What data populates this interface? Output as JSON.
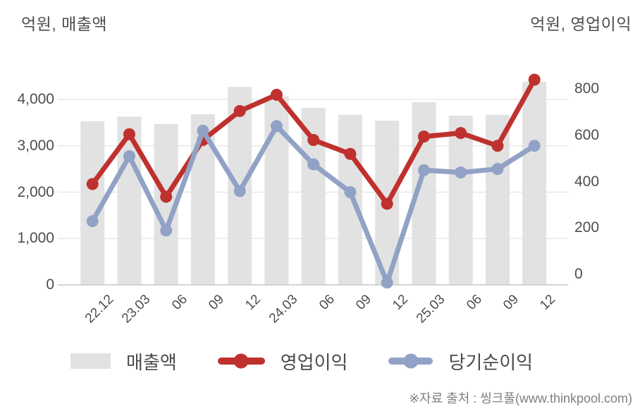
{
  "header": {
    "left_axis_title": "억원, 매출액",
    "right_axis_title": "억원, 영업이익"
  },
  "chart_data": {
    "type": "bar+line",
    "categories": [
      "22.12",
      "23.03",
      "06",
      "09",
      "12",
      "24.03",
      "06",
      "09",
      "12",
      "25.03",
      "06",
      "09",
      "12"
    ],
    "series": [
      {
        "name": "매출액",
        "type": "bar",
        "yaxis": "left",
        "color": "#e2e2e2",
        "values": [
          3530,
          3630,
          3470,
          3680,
          4270,
          4070,
          3820,
          3670,
          3540,
          3940,
          3650,
          3670,
          4380
        ]
      },
      {
        "name": "영업이익",
        "type": "line",
        "yaxis": "right",
        "color": "#bf312e",
        "values": [
          435,
          650,
          380,
          625,
          750,
          820,
          625,
          565,
          350,
          640,
          655,
          600,
          885
        ]
      },
      {
        "name": "당기순이익",
        "type": "line",
        "yaxis": "right",
        "color": "#92a2c6",
        "values": [
          275,
          555,
          235,
          665,
          405,
          685,
          520,
          400,
          10,
          495,
          485,
          500,
          600
        ]
      }
    ],
    "left_axis": {
      "label": "억원, 매출액",
      "unit": "억원",
      "ticks": [
        "4,000",
        "3,000",
        "2,000",
        "1,000",
        "0"
      ],
      "tick_values": [
        4000,
        3000,
        2000,
        1000,
        0
      ],
      "range": [
        0,
        4400
      ]
    },
    "right_axis": {
      "label": "억원, 영업이익",
      "unit": "억원",
      "ticks": [
        "800",
        "600",
        "400",
        "200",
        "0"
      ],
      "tick_values": [
        800,
        600,
        400,
        200,
        0
      ],
      "range": [
        0,
        880
      ]
    },
    "grid": true,
    "legend_position": "bottom",
    "colors": {
      "bar": "#e2e2e2",
      "operating_profit_line": "#bf312e",
      "net_income_line": "#92a2c6",
      "gridline": "#e8e8e8",
      "axis_baseline": "#c8c8c8",
      "axis_text": "#4d4d4d"
    }
  },
  "footer": {
    "source": "※자료 출처 : 씽크풀(www.thinkpool.com)"
  }
}
